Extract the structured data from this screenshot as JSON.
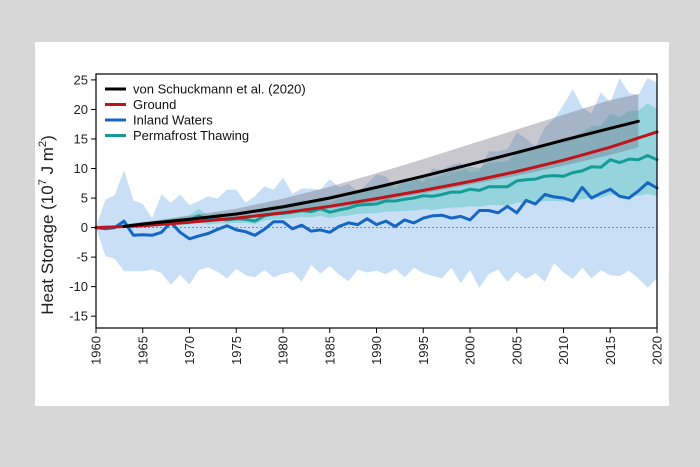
{
  "chart_data": {
    "type": "line",
    "ylabel_main": "Heat Storage (10",
    "ylabel_exp1": "7",
    "ylabel_mid": " J m",
    "ylabel_exp2": "2",
    "ylabel_end": ")",
    "xlim": [
      1960,
      2020
    ],
    "ylim": [
      -17,
      26
    ],
    "xticks": [
      "1960",
      "1965",
      "1970",
      "1975",
      "1980",
      "1985",
      "1990",
      "1995",
      "2000",
      "2005",
      "2010",
      "2015",
      "2020"
    ],
    "yticks": [
      "25",
      "20",
      "15",
      "10",
      "5",
      "0",
      "-5",
      "-10",
      "-15"
    ],
    "legend_position": "top-left",
    "series": [
      {
        "name": "von Schuckmann et al. (2020)",
        "color": "#000000",
        "x": [
          1963,
          1965,
          1970,
          1975,
          1980,
          1985,
          1990,
          1995,
          2000,
          2005,
          2010,
          2015,
          2018
        ],
        "y": [
          0.2,
          0.6,
          1.4,
          2.3,
          3.5,
          5.0,
          6.8,
          8.7,
          10.7,
          12.7,
          14.8,
          16.8,
          18.0
        ],
        "band_lower": [
          0.1,
          0.3,
          0.9,
          1.5,
          2.2,
          3.2,
          4.4,
          5.8,
          7.3,
          8.8,
          10.5,
          12.3,
          13.6
        ],
        "band_upper": [
          0.3,
          0.9,
          2.0,
          3.2,
          4.9,
          6.9,
          9.2,
          11.6,
          14.1,
          16.6,
          19.1,
          21.6,
          22.6
        ]
      },
      {
        "name": "Ground",
        "color": "#c0141c",
        "x": [
          1960,
          1965,
          1970,
          1975,
          1980,
          1985,
          1990,
          1995,
          2000,
          2005,
          2010,
          2015,
          2020
        ],
        "y": [
          0.0,
          0.3,
          0.9,
          1.6,
          2.5,
          3.6,
          4.9,
          6.3,
          7.8,
          9.5,
          11.4,
          13.6,
          16.2
        ]
      },
      {
        "name": "Inland Waters",
        "color": "#1666c4",
        "x": [
          1960,
          1961,
          1962,
          1963,
          1964,
          1965,
          1966,
          1967,
          1968,
          1969,
          1970,
          1971,
          1972,
          1973,
          1974,
          1975,
          1976,
          1977,
          1978,
          1979,
          1980,
          1981,
          1982,
          1983,
          1984,
          1985,
          1986,
          1987,
          1988,
          1989,
          1990,
          1991,
          1992,
          1993,
          1994,
          1995,
          1996,
          1997,
          1998,
          1999,
          2000,
          2001,
          2002,
          2003,
          2004,
          2005,
          2006,
          2007,
          2008,
          2009,
          2010,
          2011,
          2012,
          2013,
          2014,
          2015,
          2016,
          2017,
          2018,
          2019,
          2020
        ],
        "y": [
          0.0,
          -0.2,
          0.0,
          1.1,
          -1.3,
          -1.2,
          -1.3,
          -0.8,
          0.9,
          -0.8,
          -1.9,
          -1.4,
          -1.0,
          -0.3,
          0.3,
          -0.4,
          -0.7,
          -1.3,
          -0.3,
          1.0,
          1.0,
          -0.2,
          0.4,
          -0.6,
          -0.4,
          -0.8,
          0.2,
          0.8,
          0.5,
          1.5,
          0.5,
          1.1,
          0.2,
          1.3,
          0.8,
          1.6,
          2.0,
          2.1,
          1.6,
          1.9,
          1.3,
          2.9,
          2.9,
          2.5,
          3.6,
          2.5,
          4.6,
          4.0,
          5.6,
          5.2,
          5.0,
          4.5,
          6.8,
          5.0,
          5.8,
          6.5,
          5.3,
          5.0,
          6.2,
          7.6,
          6.7
        ],
        "band_lower": [
          0.0,
          -4.8,
          -5.3,
          -7.4,
          -7.4,
          -7.4,
          -7.1,
          -7.7,
          -9.7,
          -8.0,
          -9.6,
          -7.2,
          -6.7,
          -7.5,
          -8.6,
          -7.0,
          -8.1,
          -8.4,
          -7.2,
          -8.4,
          -7.8,
          -7.5,
          -9.2,
          -6.3,
          -7.8,
          -6.5,
          -8.0,
          -9.1,
          -7.1,
          -7.6,
          -7.3,
          -7.9,
          -7.0,
          -8.4,
          -6.8,
          -7.7,
          -8.2,
          -8.6,
          -6.8,
          -9.4,
          -7.2,
          -10.2,
          -7.9,
          -7.1,
          -9.2,
          -7.5,
          -8.7,
          -7.7,
          -9.2,
          -6.0,
          -7.6,
          -8.7,
          -6.8,
          -8.6,
          -7.2,
          -8.1,
          -8.2,
          -7.3,
          -8.6,
          -10.2,
          -8.6
        ],
        "band_upper": [
          0.0,
          4.7,
          5.5,
          9.7,
          4.6,
          4.0,
          1.6,
          5.6,
          4.2,
          5.6,
          3.8,
          4.5,
          5.3,
          4.9,
          6.4,
          6.4,
          4.2,
          5.3,
          7.0,
          6.4,
          8.5,
          5.7,
          6.6,
          6.6,
          6.4,
          8.2,
          6.8,
          7.4,
          6.1,
          7.4,
          9.0,
          8.7,
          6.5,
          8.3,
          8.4,
          7.6,
          10.0,
          9.8,
          10.6,
          11.0,
          9.4,
          9.6,
          12.9,
          12.9,
          13.3,
          16.1,
          15.1,
          13.6,
          17.0,
          18.4,
          20.8,
          23.4,
          20.4,
          19.3,
          22.9,
          21.2,
          25.3,
          22.8,
          22.4,
          25.3,
          24.5
        ]
      },
      {
        "name": "Permafrost Thawing",
        "color": "#169c96",
        "x": [
          1960,
          1962,
          1964,
          1966,
          1968,
          1970,
          1971,
          1972,
          1973,
          1974,
          1975,
          1976,
          1977,
          1978,
          1979,
          1980,
          1981,
          1982,
          1983,
          1984,
          1985,
          1986,
          1987,
          1988,
          1989,
          1990,
          1991,
          1992,
          1993,
          1994,
          1995,
          1996,
          1997,
          1998,
          1999,
          2000,
          2001,
          2002,
          2003,
          2004,
          2005,
          2006,
          2007,
          2008,
          2009,
          2010,
          2011,
          2012,
          2013,
          2014,
          2015,
          2016,
          2017,
          2018,
          2019,
          2020
        ],
        "y": [
          0.0,
          0.1,
          0.4,
          0.6,
          0.9,
          1.2,
          2.0,
          1.2,
          1.5,
          1.3,
          1.5,
          1.4,
          1.1,
          2.0,
          2.3,
          2.4,
          2.6,
          2.9,
          2.7,
          3.2,
          2.6,
          3.0,
          3.3,
          3.8,
          3.9,
          4.0,
          4.5,
          4.5,
          4.8,
          5.0,
          5.4,
          5.3,
          5.6,
          6.0,
          6.0,
          6.5,
          6.3,
          6.9,
          6.9,
          6.9,
          7.9,
          8.1,
          8.2,
          8.7,
          8.8,
          8.7,
          9.3,
          9.6,
          10.3,
          10.2,
          11.5,
          11.0,
          11.6,
          11.5,
          12.2,
          11.5
        ],
        "band_lower": [
          0.0,
          0.0,
          0.1,
          0.2,
          0.3,
          0.5,
          1.0,
          0.5,
          0.7,
          0.7,
          0.8,
          0.8,
          0.6,
          1.2,
          1.4,
          1.5,
          1.6,
          1.8,
          1.7,
          2.0,
          1.6,
          1.9,
          2.0,
          2.3,
          2.4,
          2.4,
          2.7,
          2.7,
          2.8,
          2.9,
          3.1,
          3.0,
          3.2,
          3.4,
          3.4,
          3.6,
          3.5,
          3.8,
          3.8,
          3.7,
          4.2,
          4.3,
          4.3,
          4.5,
          4.5,
          4.4,
          4.7,
          4.8,
          5.1,
          5.0,
          5.6,
          5.3,
          5.5,
          5.4,
          5.7,
          5.3
        ],
        "band_upper": [
          0.0,
          0.3,
          0.8,
          1.1,
          1.6,
          2.1,
          3.2,
          2.0,
          2.5,
          2.3,
          2.5,
          2.3,
          2.0,
          3.3,
          3.8,
          3.9,
          4.2,
          4.6,
          4.4,
          5.1,
          4.3,
          4.9,
          5.3,
          6.0,
          6.2,
          6.4,
          7.1,
          7.2,
          7.6,
          7.9,
          8.5,
          8.4,
          8.9,
          9.5,
          9.6,
          10.3,
          10.1,
          11.0,
          11.1,
          11.2,
          12.7,
          13.1,
          13.4,
          14.2,
          14.5,
          14.5,
          15.5,
          16.1,
          17.2,
          17.2,
          19.3,
          18.7,
          19.7,
          19.8,
          21.0,
          20.1
        ]
      }
    ]
  }
}
